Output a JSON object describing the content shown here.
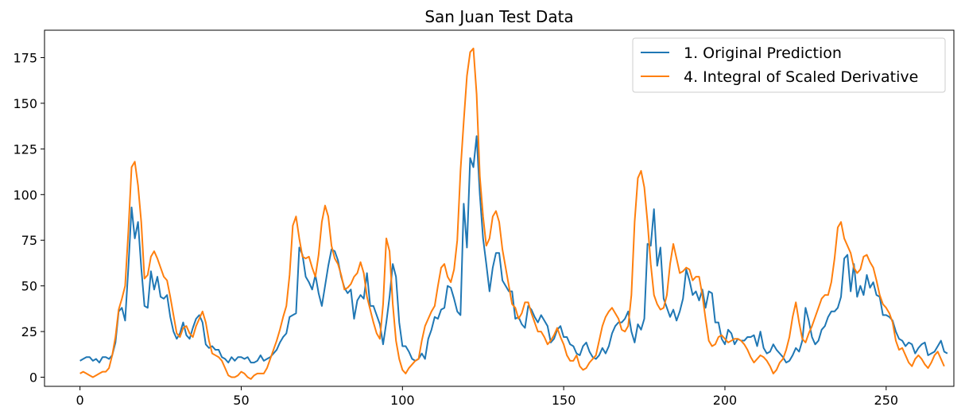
{
  "chart_data": {
    "type": "line",
    "title": "San Juan Test Data",
    "xlabel": "",
    "ylabel": "",
    "xlim": [
      -11,
      271
    ],
    "ylim": [
      -5,
      190
    ],
    "xticks": [
      0,
      50,
      100,
      150,
      200,
      250
    ],
    "yticks": [
      0,
      25,
      50,
      75,
      100,
      125,
      150,
      175
    ],
    "grid": false,
    "legend_position": "top-right",
    "series": [
      {
        "name": "1. Original Prediction",
        "color": "#1f77b4",
        "x_start": 0,
        "values": [
          9,
          10,
          11,
          11,
          9,
          10,
          8,
          11,
          11,
          10,
          12,
          19,
          36,
          38,
          31,
          60,
          93,
          76,
          85,
          60,
          39,
          38,
          58,
          48,
          55,
          44,
          43,
          45,
          33,
          25,
          21,
          24,
          30,
          23,
          21,
          27,
          32,
          34,
          30,
          18,
          16,
          17,
          15,
          15,
          11,
          10,
          8,
          11,
          9,
          11,
          11,
          10,
          11,
          8,
          8,
          9,
          12,
          9,
          10,
          11,
          13,
          15,
          19,
          22,
          24,
          33,
          34,
          35,
          71,
          67,
          55,
          52,
          48,
          56,
          46,
          39,
          50,
          61,
          70,
          69,
          64,
          55,
          49,
          46,
          48,
          32,
          42,
          45,
          43,
          57,
          39,
          39,
          34,
          29,
          18,
          30,
          44,
          62,
          55,
          30,
          17,
          17,
          14,
          10,
          9,
          10,
          13,
          10,
          21,
          26,
          33,
          32,
          37,
          38,
          50,
          49,
          43,
          36,
          34,
          95,
          71,
          120,
          115,
          132,
          100,
          76,
          62,
          47,
          60,
          68,
          68,
          53,
          50,
          47,
          47,
          32,
          33,
          29,
          27,
          39,
          37,
          33,
          30,
          34,
          31,
          28,
          19,
          21,
          26,
          28,
          22,
          22,
          18,
          17,
          13,
          12,
          17,
          19,
          14,
          11,
          10,
          12,
          16,
          13,
          17,
          24,
          28,
          30,
          30,
          32,
          36,
          25,
          19,
          29,
          26,
          32,
          73,
          72,
          92,
          61,
          71,
          43,
          38,
          33,
          37,
          31,
          36,
          43,
          59,
          53,
          45,
          47,
          42,
          48,
          38,
          47,
          46,
          30,
          30,
          21,
          18,
          26,
          24,
          18,
          21,
          20,
          20,
          22,
          22,
          23,
          17,
          25,
          16,
          13,
          14,
          18,
          15,
          13,
          11,
          8,
          9,
          12,
          16,
          14,
          20,
          38,
          31,
          22,
          18,
          20,
          26,
          28,
          33,
          36,
          36,
          38,
          44,
          65,
          67,
          47,
          62,
          44,
          50,
          45,
          56,
          49,
          52,
          45,
          44,
          34,
          34,
          33,
          31,
          25,
          21,
          20,
          17,
          19,
          18,
          13,
          16,
          18,
          19,
          12,
          13,
          14,
          17,
          20,
          14,
          13
        ]
      },
      {
        "name": "4. Integral of Scaled Derivative",
        "color": "#ff7f0e",
        "x_start": 0,
        "values": [
          2,
          3,
          2,
          1,
          0,
          1,
          2,
          3,
          3,
          5,
          12,
          22,
          37,
          43,
          50,
          80,
          115,
          118,
          105,
          85,
          54,
          56,
          66,
          69,
          65,
          60,
          55,
          53,
          44,
          34,
          24,
          22,
          27,
          28,
          24,
          22,
          28,
          32,
          36,
          30,
          20,
          13,
          12,
          11,
          9,
          5,
          1,
          0,
          0,
          1,
          3,
          2,
          0,
          -1,
          1,
          2,
          2,
          2,
          5,
          10,
          15,
          20,
          26,
          33,
          39,
          56,
          83,
          88,
          76,
          66,
          65,
          66,
          60,
          55,
          67,
          85,
          94,
          88,
          72,
          65,
          62,
          56,
          48,
          49,
          51,
          55,
          57,
          63,
          57,
          44,
          37,
          30,
          24,
          21,
          40,
          76,
          69,
          40,
          20,
          10,
          4,
          2,
          5,
          7,
          9,
          10,
          20,
          28,
          32,
          36,
          39,
          50,
          60,
          62,
          55,
          52,
          59,
          75,
          113,
          140,
          165,
          178,
          180,
          155,
          110,
          88,
          72,
          76,
          88,
          91,
          85,
          70,
          60,
          50,
          40,
          38,
          32,
          35,
          41,
          41,
          35,
          30,
          25,
          25,
          22,
          18,
          20,
          23,
          27,
          22,
          18,
          12,
          9,
          9,
          12,
          6,
          4,
          5,
          8,
          10,
          12,
          20,
          28,
          33,
          36,
          38,
          35,
          32,
          26,
          25,
          28,
          45,
          85,
          109,
          113,
          104,
          85,
          62,
          45,
          40,
          37,
          38,
          45,
          62,
          73,
          65,
          57,
          58,
          60,
          59,
          53,
          55,
          55,
          45,
          32,
          20,
          17,
          18,
          22,
          23,
          21,
          19,
          20,
          21,
          21,
          20,
          18,
          15,
          11,
          8,
          10,
          12,
          11,
          9,
          6,
          2,
          4,
          8,
          10,
          15,
          22,
          33,
          41,
          30,
          21,
          19,
          24,
          28,
          33,
          38,
          43,
          45,
          45,
          52,
          65,
          82,
          85,
          76,
          72,
          68,
          60,
          57,
          59,
          66,
          67,
          63,
          60,
          53,
          45,
          40,
          38,
          35,
          30,
          20,
          15,
          16,
          12,
          8,
          6,
          10,
          12,
          10,
          7,
          5,
          8,
          12,
          14,
          10,
          6
        ]
      }
    ]
  }
}
